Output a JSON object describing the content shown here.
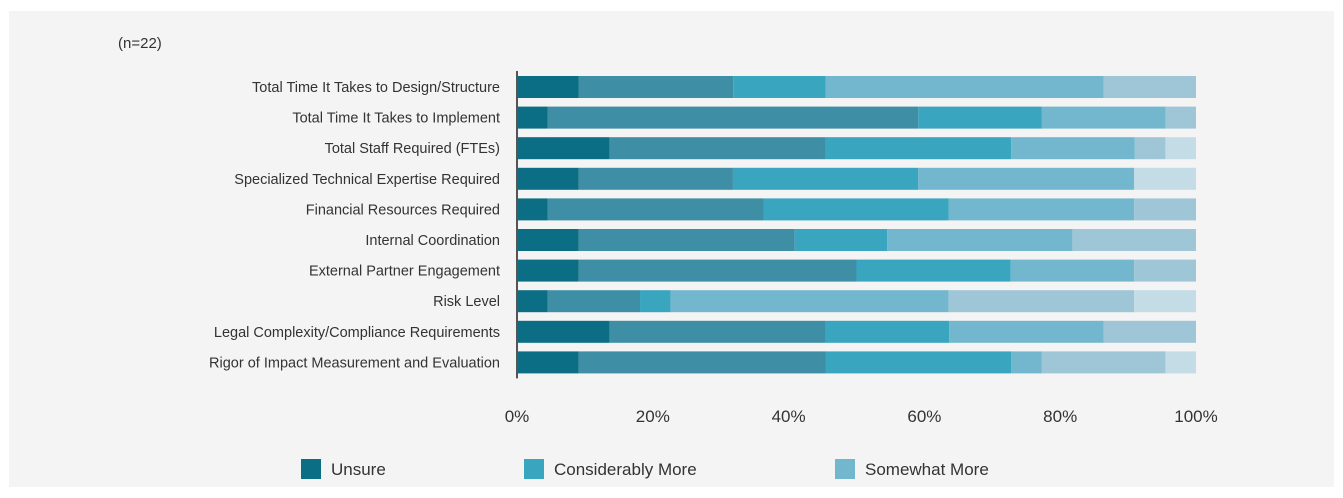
{
  "note": "(n=22)",
  "colors": {
    "segments": [
      "#0b6e84",
      "#3e8ea5",
      "#3aa5be",
      "#72b7cd",
      "#9fc6d6",
      "#c3dce6"
    ],
    "axis": "#555555",
    "background": "#f4f4f4"
  },
  "chart_data": {
    "type": "bar",
    "orientation": "horizontal",
    "stacked": true,
    "percent_scale": true,
    "categories": [
      "Total Time It Takes to Design/Structure",
      "Total Time It Takes to Implement",
      "Total Staff Required (FTEs)",
      "Specialized Technical Expertise Required",
      "Financial Resources Required",
      "Internal Coordination",
      "External Partner Engagement",
      "Risk Level",
      "Legal Complexity/Compliance Requirements",
      "Rigor of Impact Measurement and Evaluation"
    ],
    "series": [
      {
        "name": "Unsure",
        "color": "#0b6e84",
        "values": [
          9.1,
          4.5,
          13.6,
          9.1,
          4.5,
          9.1,
          9.1,
          4.5,
          13.6,
          9.1
        ]
      },
      {
        "color": "#3e8ea5",
        "values": [
          22.7,
          54.6,
          31.8,
          22.7,
          31.8,
          31.8,
          40.9,
          13.6,
          31.8,
          36.4
        ]
      },
      {
        "name": "Considerably More",
        "color": "#3aa5be",
        "values": [
          13.6,
          18.2,
          27.3,
          27.3,
          27.3,
          13.6,
          22.7,
          4.5,
          18.2,
          27.3
        ]
      },
      {
        "name": "Somewhat More",
        "color": "#72b7cd",
        "values": [
          40.9,
          18.2,
          18.2,
          31.8,
          27.3,
          27.3,
          18.2,
          40.9,
          22.7,
          4.5
        ]
      },
      {
        "color": "#9fc6d6",
        "values": [
          13.6,
          4.5,
          4.5,
          0,
          9.1,
          18.2,
          9.1,
          27.3,
          13.6,
          18.2
        ]
      },
      {
        "color": "#c3dce6",
        "values": [
          0,
          0,
          4.5,
          9.1,
          0,
          0,
          0,
          9.1,
          0,
          4.5
        ]
      }
    ],
    "xlim": [
      0,
      100
    ],
    "xticks": [
      "0%",
      "20%",
      "40%",
      "60%",
      "80%",
      "100%"
    ],
    "legend": {
      "position": "bottom",
      "entries": [
        {
          "name": "Unsure",
          "color": "#0b6e84"
        },
        {
          "name": "Considerably More",
          "color": "#3aa5be"
        },
        {
          "name": "Somewhat More",
          "color": "#72b7cd"
        }
      ]
    },
    "grid": false
  }
}
